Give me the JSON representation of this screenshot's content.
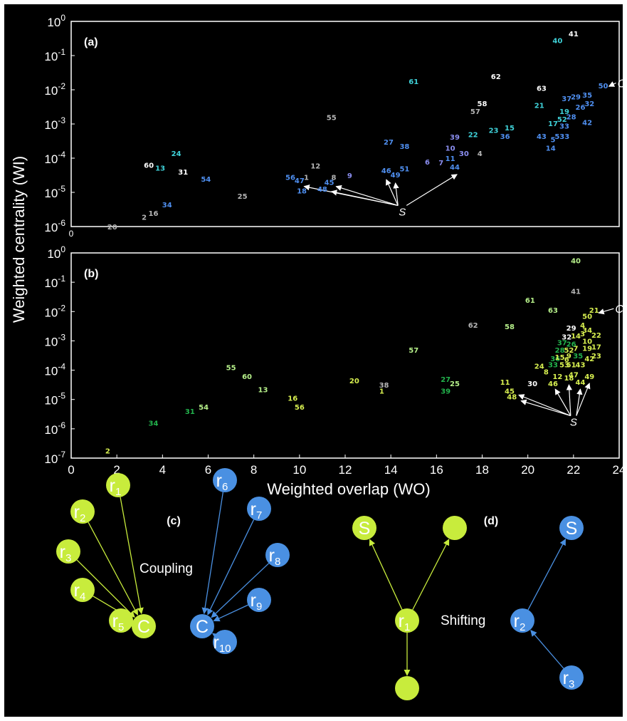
{
  "panels": {
    "a": "(a)",
    "b": "(b)",
    "c": "(c)",
    "d": "(d)"
  },
  "panel_a_xtick": "0",
  "colors": {
    "gray": "#b5b5b5",
    "cyan": "#3fd1d8",
    "blue": "#4f8ff0",
    "purple": "#8b8ef0",
    "white": "#ffffff",
    "green": "#22b24c",
    "lightgreen": "#b6f08a",
    "yellow": "#d8f050",
    "node_green": "#c8ec3c",
    "node_blue": "#4a90e2"
  },
  "chart_data": [
    {
      "type": "scatter",
      "panel": "(a)",
      "title": "",
      "xlabel": "",
      "ylabel": "Weighted centrality (WI)",
      "xlim": [
        0,
        24
      ],
      "ylim_log10": [
        -6,
        0
      ],
      "yscale": "log",
      "ytick_labels": [
        "10^0",
        "10^-1",
        "10^-2",
        "10^-3",
        "10^-4",
        "10^-5",
        "10^-6"
      ],
      "annotations": {
        "S": "S",
        "C": "C"
      },
      "points": [
        {
          "id": "20",
          "x": 1.8,
          "y": -6.0,
          "color": "gray"
        },
        {
          "id": "2",
          "x": 3.2,
          "y": -5.72,
          "color": "gray"
        },
        {
          "id": "16",
          "x": 3.6,
          "y": -5.6,
          "color": "gray"
        },
        {
          "id": "34",
          "x": 4.2,
          "y": -5.35,
          "color": "blue"
        },
        {
          "id": "60",
          "x": 3.4,
          "y": -4.2,
          "color": "white"
        },
        {
          "id": "13",
          "x": 3.9,
          "y": -4.28,
          "color": "cyan"
        },
        {
          "id": "31",
          "x": 4.9,
          "y": -4.4,
          "color": "white"
        },
        {
          "id": "24",
          "x": 4.6,
          "y": -3.85,
          "color": "cyan"
        },
        {
          "id": "54",
          "x": 5.9,
          "y": -4.6,
          "color": "blue"
        },
        {
          "id": "25",
          "x": 7.5,
          "y": -5.1,
          "color": "gray"
        },
        {
          "id": "56",
          "x": 9.6,
          "y": -4.55,
          "color": "blue"
        },
        {
          "id": "47",
          "x": 10.0,
          "y": -4.65,
          "color": "blue"
        },
        {
          "id": "1",
          "x": 10.3,
          "y": -4.55,
          "color": "gray"
        },
        {
          "id": "18",
          "x": 10.1,
          "y": -4.95,
          "color": "blue"
        },
        {
          "id": "12",
          "x": 10.7,
          "y": -4.22,
          "color": "gray"
        },
        {
          "id": "8",
          "x": 11.5,
          "y": -4.55,
          "color": "gray"
        },
        {
          "id": "45",
          "x": 11.3,
          "y": -4.7,
          "color": "blue"
        },
        {
          "id": "48",
          "x": 11.0,
          "y": -4.9,
          "color": "blue"
        },
        {
          "id": "9",
          "x": 12.2,
          "y": -4.5,
          "color": "purple"
        },
        {
          "id": "55",
          "x": 11.4,
          "y": -2.8,
          "color": "gray"
        },
        {
          "id": "46",
          "x": 13.8,
          "y": -4.35,
          "color": "blue"
        },
        {
          "id": "49",
          "x": 14.2,
          "y": -4.48,
          "color": "blue"
        },
        {
          "id": "51",
          "x": 14.6,
          "y": -4.3,
          "color": "blue"
        },
        {
          "id": "27",
          "x": 13.9,
          "y": -3.52,
          "color": "blue"
        },
        {
          "id": "38",
          "x": 14.6,
          "y": -3.65,
          "color": "blue"
        },
        {
          "id": "61",
          "x": 15.0,
          "y": -1.75,
          "color": "cyan"
        },
        {
          "id": "6",
          "x": 15.6,
          "y": -4.1,
          "color": "purple"
        },
        {
          "id": "7",
          "x": 16.2,
          "y": -4.12,
          "color": "purple"
        },
        {
          "id": "11",
          "x": 16.6,
          "y": -4.0,
          "color": "blue"
        },
        {
          "id": "44",
          "x": 16.8,
          "y": -4.25,
          "color": "blue"
        },
        {
          "id": "10",
          "x": 16.6,
          "y": -3.7,
          "color": "purple"
        },
        {
          "id": "30",
          "x": 17.2,
          "y": -3.85,
          "color": "purple"
        },
        {
          "id": "39",
          "x": 16.8,
          "y": -3.38,
          "color": "purple"
        },
        {
          "id": "22",
          "x": 17.6,
          "y": -3.3,
          "color": "cyan"
        },
        {
          "id": "4",
          "x": 17.9,
          "y": -3.85,
          "color": "gray"
        },
        {
          "id": "57",
          "x": 17.7,
          "y": -2.62,
          "color": "gray"
        },
        {
          "id": "58",
          "x": 18.0,
          "y": -2.4,
          "color": "white"
        },
        {
          "id": "62",
          "x": 18.6,
          "y": -1.6,
          "color": "white"
        },
        {
          "id": "23",
          "x": 18.5,
          "y": -3.18,
          "color": "cyan"
        },
        {
          "id": "36",
          "x": 19.0,
          "y": -3.35,
          "color": "blue"
        },
        {
          "id": "15",
          "x": 19.2,
          "y": -3.1,
          "color": "cyan"
        },
        {
          "id": "63",
          "x": 20.6,
          "y": -1.95,
          "color": "white"
        },
        {
          "id": "21",
          "x": 20.5,
          "y": -2.45,
          "color": "cyan"
        },
        {
          "id": "43",
          "x": 20.6,
          "y": -3.35,
          "color": "blue"
        },
        {
          "id": "14",
          "x": 21.0,
          "y": -3.7,
          "color": "blue"
        },
        {
          "id": "5",
          "x": 21.1,
          "y": -3.45,
          "color": "blue"
        },
        {
          "id": "533",
          "x": 21.5,
          "y": -3.35,
          "color": "blue"
        },
        {
          "id": "17",
          "x": 21.1,
          "y": -2.98,
          "color": "cyan"
        },
        {
          "id": "52",
          "x": 21.5,
          "y": -2.85,
          "color": "cyan"
        },
        {
          "id": "33",
          "x": 21.6,
          "y": -3.05,
          "color": "blue"
        },
        {
          "id": "28",
          "x": 21.9,
          "y": -2.78,
          "color": "blue"
        },
        {
          "id": "19",
          "x": 21.6,
          "y": -2.62,
          "color": "cyan"
        },
        {
          "id": "37",
          "x": 21.7,
          "y": -2.25,
          "color": "blue"
        },
        {
          "id": "29",
          "x": 22.1,
          "y": -2.2,
          "color": "blue"
        },
        {
          "id": "26",
          "x": 22.3,
          "y": -2.5,
          "color": "blue"
        },
        {
          "id": "32",
          "x": 22.7,
          "y": -2.4,
          "color": "blue"
        },
        {
          "id": "35",
          "x": 22.6,
          "y": -2.15,
          "color": "blue"
        },
        {
          "id": "42",
          "x": 22.6,
          "y": -2.95,
          "color": "blue"
        },
        {
          "id": "50",
          "x": 23.3,
          "y": -1.88,
          "color": "blue"
        },
        {
          "id": "40",
          "x": 21.3,
          "y": -0.55,
          "color": "cyan"
        },
        {
          "id": "41",
          "x": 22.0,
          "y": -0.35,
          "color": "white"
        }
      ]
    },
    {
      "type": "scatter",
      "panel": "(b)",
      "title": "",
      "xlabel": "Weighted overlap (WO)",
      "ylabel": "Weighted centrality (WI)",
      "xlim": [
        0,
        24
      ],
      "ylim_log10": [
        -7,
        0
      ],
      "yscale": "log",
      "xtick_labels": [
        "0",
        "2",
        "4",
        "6",
        "8",
        "10",
        "12",
        "14",
        "16",
        "18",
        "20",
        "22",
        "24"
      ],
      "ytick_labels": [
        "10^0",
        "10^-1",
        "10^-2",
        "10^-3",
        "10^-4",
        "10^-5",
        "10^-6",
        "10^-7"
      ],
      "annotations": {
        "S": "S",
        "C": "C"
      },
      "points": [
        {
          "id": "2",
          "x": 1.6,
          "y": -6.75,
          "color": "yellow"
        },
        {
          "id": "34",
          "x": 3.6,
          "y": -5.8,
          "color": "green"
        },
        {
          "id": "31",
          "x": 5.2,
          "y": -5.4,
          "color": "green"
        },
        {
          "id": "54",
          "x": 5.8,
          "y": -5.25,
          "color": "lightgreen"
        },
        {
          "id": "55",
          "x": 7.0,
          "y": -3.9,
          "color": "lightgreen"
        },
        {
          "id": "60",
          "x": 7.7,
          "y": -4.2,
          "color": "lightgreen"
        },
        {
          "id": "13",
          "x": 8.4,
          "y": -4.65,
          "color": "lightgreen"
        },
        {
          "id": "16",
          "x": 9.7,
          "y": -4.95,
          "color": "yellow"
        },
        {
          "id": "56",
          "x": 10.0,
          "y": -5.25,
          "color": "yellow"
        },
        {
          "id": "20",
          "x": 12.4,
          "y": -4.35,
          "color": "yellow"
        },
        {
          "id": "38",
          "x": 13.7,
          "y": -4.5,
          "color": "gray"
        },
        {
          "id": "1",
          "x": 13.6,
          "y": -4.7,
          "color": "yellow"
        },
        {
          "id": "57",
          "x": 15.0,
          "y": -3.3,
          "color": "lightgreen"
        },
        {
          "id": "27",
          "x": 16.4,
          "y": -4.3,
          "color": "green"
        },
        {
          "id": "25",
          "x": 16.8,
          "y": -4.45,
          "color": "lightgreen"
        },
        {
          "id": "39",
          "x": 16.4,
          "y": -4.7,
          "color": "green"
        },
        {
          "id": "62",
          "x": 17.6,
          "y": -2.45,
          "color": "gray"
        },
        {
          "id": "58",
          "x": 19.2,
          "y": -2.5,
          "color": "lightgreen"
        },
        {
          "id": "11",
          "x": 19.0,
          "y": -4.4,
          "color": "yellow"
        },
        {
          "id": "45",
          "x": 19.2,
          "y": -4.7,
          "color": "yellow"
        },
        {
          "id": "48",
          "x": 19.3,
          "y": -4.9,
          "color": "yellow"
        },
        {
          "id": "30",
          "x": 20.2,
          "y": -4.45,
          "color": "white"
        },
        {
          "id": "61",
          "x": 20.1,
          "y": -1.6,
          "color": "lightgreen"
        },
        {
          "id": "63",
          "x": 21.1,
          "y": -1.95,
          "color": "lightgreen"
        },
        {
          "id": "24",
          "x": 20.5,
          "y": -3.85,
          "color": "yellow"
        },
        {
          "id": "8",
          "x": 20.8,
          "y": -4.05,
          "color": "yellow"
        },
        {
          "id": "46",
          "x": 21.1,
          "y": -4.45,
          "color": "yellow"
        },
        {
          "id": "12",
          "x": 21.3,
          "y": -4.2,
          "color": "yellow"
        },
        {
          "id": "18",
          "x": 21.8,
          "y": -4.25,
          "color": "yellow"
        },
        {
          "id": "47",
          "x": 22.0,
          "y": -4.15,
          "color": "yellow"
        },
        {
          "id": "44",
          "x": 22.3,
          "y": -4.4,
          "color": "yellow"
        },
        {
          "id": "49",
          "x": 22.7,
          "y": -4.2,
          "color": "yellow"
        },
        {
          "id": "36",
          "x": 21.2,
          "y": -3.6,
          "color": "green"
        },
        {
          "id": "33",
          "x": 21.1,
          "y": -3.8,
          "color": "green"
        },
        {
          "id": "53",
          "x": 21.6,
          "y": -3.8,
          "color": "yellow"
        },
        {
          "id": "51",
          "x": 21.9,
          "y": -3.8,
          "color": "yellow"
        },
        {
          "id": "43",
          "x": 22.3,
          "y": -3.8,
          "color": "yellow"
        },
        {
          "id": "15",
          "x": 21.4,
          "y": -3.55,
          "color": "yellow"
        },
        {
          "id": "9",
          "x": 21.8,
          "y": -3.5,
          "color": "yellow"
        },
        {
          "id": "6",
          "x": 21.7,
          "y": -3.62,
          "color": "yellow"
        },
        {
          "id": "35",
          "x": 22.2,
          "y": -3.5,
          "color": "green"
        },
        {
          "id": "42",
          "x": 22.7,
          "y": -3.6,
          "color": "yellow"
        },
        {
          "id": "23",
          "x": 23.0,
          "y": -3.5,
          "color": "yellow"
        },
        {
          "id": "28",
          "x": 21.4,
          "y": -3.3,
          "color": "green"
        },
        {
          "id": "52",
          "x": 21.8,
          "y": -3.3,
          "color": "yellow"
        },
        {
          "id": "7",
          "x": 22.1,
          "y": -3.25,
          "color": "yellow"
        },
        {
          "id": "19",
          "x": 22.6,
          "y": -3.25,
          "color": "yellow"
        },
        {
          "id": "17",
          "x": 23.0,
          "y": -3.2,
          "color": "yellow"
        },
        {
          "id": "37",
          "x": 21.5,
          "y": -3.05,
          "color": "green"
        },
        {
          "id": "26",
          "x": 21.9,
          "y": -3.1,
          "color": "green"
        },
        {
          "id": "10",
          "x": 22.6,
          "y": -3.0,
          "color": "yellow"
        },
        {
          "id": "32",
          "x": 21.7,
          "y": -2.85,
          "color": "white"
        },
        {
          "id": "14",
          "x": 22.1,
          "y": -2.82,
          "color": "yellow"
        },
        {
          "id": "3",
          "x": 22.4,
          "y": -2.75,
          "color": "yellow"
        },
        {
          "id": "22",
          "x": 23.0,
          "y": -2.8,
          "color": "yellow"
        },
        {
          "id": "29",
          "x": 21.9,
          "y": -2.55,
          "color": "white"
        },
        {
          "id": "4",
          "x": 22.4,
          "y": -2.45,
          "color": "yellow"
        },
        {
          "id": "34",
          "x": 22.6,
          "y": -2.62,
          "color": "yellow"
        },
        {
          "id": "50",
          "x": 22.6,
          "y": -2.15,
          "color": "yellow"
        },
        {
          "id": "21",
          "x": 22.9,
          "y": -1.95,
          "color": "yellow"
        },
        {
          "id": "41",
          "x": 22.1,
          "y": -1.3,
          "color": "gray"
        },
        {
          "id": "40",
          "x": 22.1,
          "y": -0.25,
          "color": "lightgreen"
        }
      ]
    }
  ],
  "diagram_c": {
    "panel": "(c)",
    "label": "Coupling",
    "center": "C",
    "green_nodes": [
      "1",
      "2",
      "3",
      "4",
      "5"
    ],
    "blue_nodes": [
      "6",
      "7",
      "8",
      "9",
      "10"
    ],
    "node_prefix": "r"
  },
  "diagram_d": {
    "panel": "(d)",
    "label": "Shifting",
    "target": "S",
    "green_source": "1",
    "blue_sources": [
      "2",
      "3"
    ],
    "node_prefix": "r"
  }
}
